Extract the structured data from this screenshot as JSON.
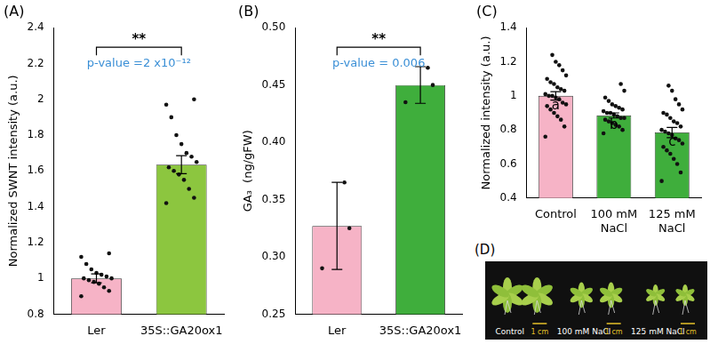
{
  "chart_data": [
    {
      "type": "bar",
      "title": "(A)",
      "categories": [
        "Ler",
        "35S::GA20ox1"
      ],
      "values": [
        1.0,
        1.635
      ],
      "errors": [
        0.025,
        0.05
      ],
      "points": [
        [
          0.9,
          0.93,
          0.95,
          0.97,
          0.98,
          0.99,
          1.0,
          1.0,
          1.01,
          1.02,
          1.03,
          1.05,
          1.08,
          1.12,
          1.14
        ],
        [
          1.42,
          1.45,
          1.5,
          1.55,
          1.58,
          1.6,
          1.62,
          1.65,
          1.68,
          1.7,
          1.75,
          1.8,
          1.9,
          1.97,
          2.0
        ]
      ],
      "colors": [
        "#f6b3c6",
        "#8cc63f"
      ],
      "y_label": "Normalized SWNT intensity (a.u.)",
      "annotations": [
        "**",
        "p-value =2 x10⁻¹²"
      ],
      "ylim": [
        0.8,
        2.4
      ],
      "yticks": [
        0.8,
        1,
        1.2,
        1.4,
        1.6,
        1.8,
        2,
        2.2,
        2.4
      ],
      "grid": false
    },
    {
      "type": "bar",
      "title": "(B)",
      "categories": [
        "Ler",
        "35S::GA20ox1"
      ],
      "values": [
        0.327,
        0.45
      ],
      "errors": [
        0.038,
        0.016
      ],
      "points": [
        [
          0.29,
          0.325,
          0.365
        ],
        [
          0.435,
          0.45,
          0.465
        ]
      ],
      "colors": [
        "#f6b3c6",
        "#3fae3c"
      ],
      "y_label": "GA₃  (ng/gFW)",
      "annotations": [
        "**",
        "p-value = 0.006"
      ],
      "ylim": [
        0.25,
        0.5
      ],
      "yticks": [
        0.25,
        {
          "value": 0.3,
          "label": "0.30"
        },
        0.35,
        {
          "value": 0.4,
          "label": "0.40"
        },
        0.45,
        {
          "value": 0.5,
          "label": "0.50"
        }
      ],
      "grid": false
    },
    {
      "type": "bar",
      "title": "(C)",
      "categories": [
        "Control",
        "100 mM NaCl",
        "125 mM NaCl"
      ],
      "values": [
        1.0,
        0.885,
        0.785
      ],
      "errors": [
        0.025,
        0.015,
        0.03
      ],
      "points": [
        [
          0.76,
          0.82,
          0.86,
          0.88,
          0.9,
          0.92,
          0.94,
          0.95,
          0.96,
          0.98,
          0.99,
          1.0,
          1.0,
          1.01,
          1.03,
          1.04,
          1.05,
          1.07,
          1.08,
          1.1,
          1.12,
          1.15,
          1.18,
          1.2,
          1.24
        ],
        [
          0.78,
          0.8,
          0.82,
          0.83,
          0.84,
          0.85,
          0.86,
          0.87,
          0.87,
          0.88,
          0.89,
          0.9,
          0.9,
          0.91,
          0.92,
          0.93,
          0.94,
          0.95,
          0.97,
          0.99,
          1.03,
          1.07
        ],
        [
          0.5,
          0.55,
          0.6,
          0.63,
          0.66,
          0.68,
          0.7,
          0.72,
          0.74,
          0.75,
          0.77,
          0.78,
          0.79,
          0.8,
          0.82,
          0.84,
          0.85,
          0.87,
          0.89,
          0.9,
          0.92,
          0.95,
          0.98,
          1.03,
          1.06
        ]
      ],
      "colors": [
        "#f6b3c6",
        "#3fae3c",
        "#3fae3c"
      ],
      "y_label": "Normalized intensity (a.u.)",
      "group_letters": [
        "a",
        "b",
        "c"
      ],
      "ylim": [
        0.4,
        1.4
      ],
      "yticks": [
        0.4,
        0.6,
        0.8,
        1,
        1.2,
        1.4
      ],
      "grid": false
    }
  ],
  "image_panel": {
    "title": "(D)",
    "labels": [
      "Control",
      "100 mM NaCl",
      "125 mM NaCl"
    ],
    "scale_bar": "1 cm"
  }
}
